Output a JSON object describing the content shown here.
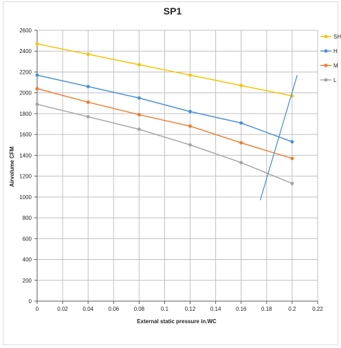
{
  "chart_data": {
    "type": "line",
    "title": "SP1",
    "xlabel": "External static pressure   in.WC",
    "ylabel": "Airvolume CFM",
    "xlim": [
      0,
      0.22
    ],
    "ylim": [
      0,
      2600
    ],
    "x_ticks": [
      "0",
      "0.02",
      "0.04",
      "0.06",
      "0.08",
      "0.1",
      "0.12",
      "0.14",
      "0.16",
      "0.18",
      "0.2",
      "0.22"
    ],
    "y_ticks": [
      "0",
      "200",
      "400",
      "600",
      "800",
      "1000",
      "1200",
      "1400",
      "1600",
      "1800",
      "2000",
      "2200",
      "2400",
      "2600"
    ],
    "grid": true,
    "legend_position": "right",
    "x": [
      0,
      0.04,
      0.08,
      0.12,
      0.16,
      0.2
    ],
    "series": [
      {
        "name": "SH",
        "color": "#f5c400",
        "values": [
          2470,
          2370,
          2270,
          2170,
          2070,
          1970
        ]
      },
      {
        "name": "H",
        "color": "#4a90d9",
        "values": [
          2170,
          2060,
          1950,
          1820,
          1710,
          1530
        ]
      },
      {
        "name": "M",
        "color": "#ee7d31",
        "values": [
          2040,
          1910,
          1790,
          1680,
          1520,
          1370
        ]
      },
      {
        "name": "L",
        "color": "#a5a5a5",
        "values": [
          1890,
          1770,
          1650,
          1500,
          1330,
          1130
        ]
      }
    ],
    "system_curve": {
      "color": "#4a90d9",
      "x": [
        0.175,
        0.204
      ],
      "y": [
        970,
        2170
      ]
    }
  }
}
